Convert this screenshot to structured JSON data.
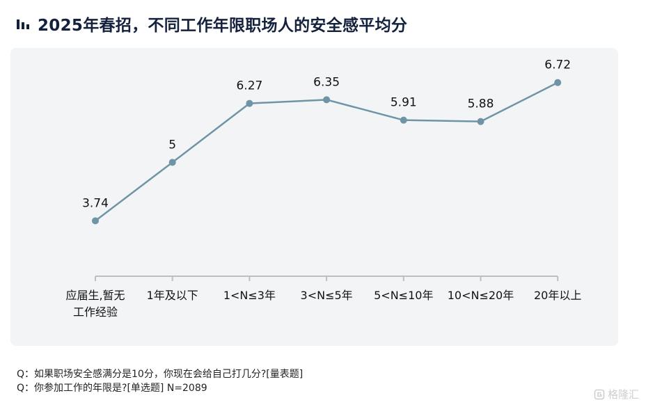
{
  "header": {
    "title": "2025年春招，不同工作年限职场人的安全感平均分",
    "icon": "bar-chart-icon"
  },
  "chart_data": {
    "type": "line",
    "title": "2025年春招，不同工作年限职场人的安全感平均分",
    "categories": [
      "应届生,暂无工作经验",
      "1年及以下",
      "1<N≤3年",
      "3<N≤5年",
      "5<N≤10年",
      "10<N≤20年",
      "20年以上"
    ],
    "category_lines": [
      [
        "应届生,暂无",
        "工作经验"
      ],
      [
        "1年及以下"
      ],
      [
        "1<N≤3年"
      ],
      [
        "3<N≤5年"
      ],
      [
        "5<N≤10年"
      ],
      [
        "10<N≤20年"
      ],
      [
        "20年以上"
      ]
    ],
    "values": [
      3.74,
      5,
      6.27,
      6.35,
      5.91,
      5.88,
      6.72
    ],
    "value_labels": [
      "3.74",
      "5",
      "6.27",
      "6.35",
      "5.91",
      "5.88",
      "6.72"
    ],
    "ylim": [
      2.5,
      7.0
    ],
    "grid": false,
    "line_color": "#6f94a5",
    "axis_color": "#b9bfc5"
  },
  "notes": [
    "Q：如果职场安全感满分是10分，你现在会给自己打几分?[量表题]",
    "Q：你参加工作的年限是?[单选题]  N=2089"
  ],
  "watermark": {
    "text": "格隆汇",
    "icon": "gelonghui-logo-icon"
  }
}
